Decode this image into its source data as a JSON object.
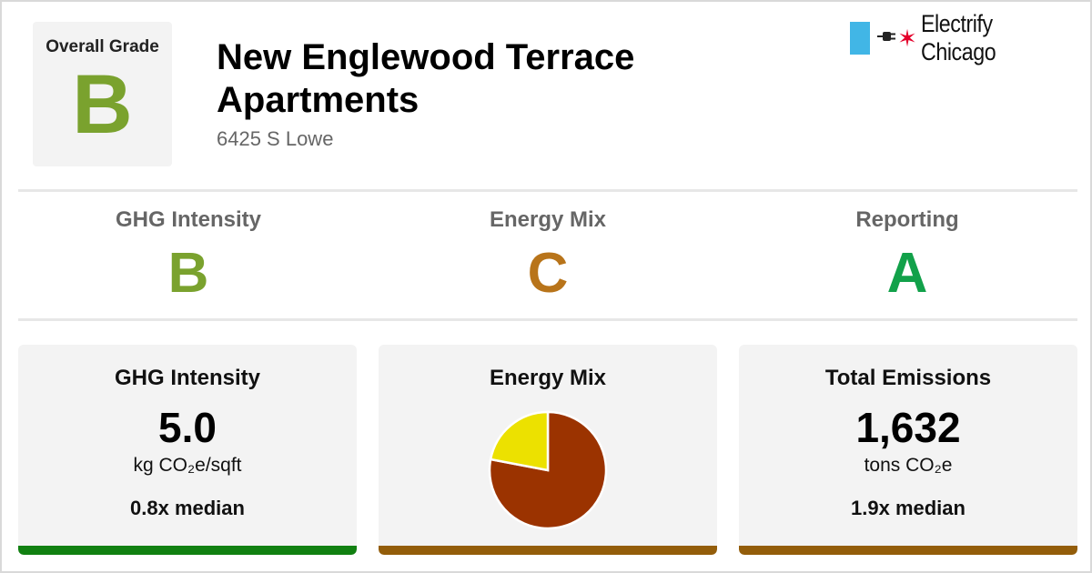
{
  "colors": {
    "grade_b": "#7aa22e",
    "grade_c": "#b8741a",
    "grade_a": "#12a14a",
    "bar_green": "#118011",
    "bar_brown": "#935d0a",
    "pie_fossil": "#9b3300",
    "pie_electric": "#ece100",
    "flag_blue": "#41b6e6",
    "star_red": "#e4002b"
  },
  "overall": {
    "label": "Overall Grade",
    "grade": "B"
  },
  "building": {
    "name": "New Englewood Terrace Apartments",
    "address": "6425 S Lowe"
  },
  "logo": {
    "plug_icon": "plug-icon",
    "star_icon": "star-icon",
    "name": "Electrify Chicago"
  },
  "subgrades": [
    {
      "label": "GHG Intensity",
      "grade": "B"
    },
    {
      "label": "Energy Mix",
      "grade": "C"
    },
    {
      "label": "Reporting",
      "grade": "A"
    }
  ],
  "cards": {
    "ghg": {
      "title": "GHG Intensity",
      "value": "5.0",
      "unit": "kg CO₂e/sqft",
      "median": "0.8x median"
    },
    "mix": {
      "title": "Energy Mix"
    },
    "emissions": {
      "title": "Total Emissions",
      "value": "1,632",
      "unit": "tons CO₂e",
      "median": "1.9x median"
    }
  },
  "chart_data": {
    "type": "pie",
    "slices": [
      {
        "label": "",
        "value": 78,
        "color": "#9b3300"
      },
      {
        "label": "",
        "value": 22,
        "color": "#ece100"
      }
    ]
  }
}
